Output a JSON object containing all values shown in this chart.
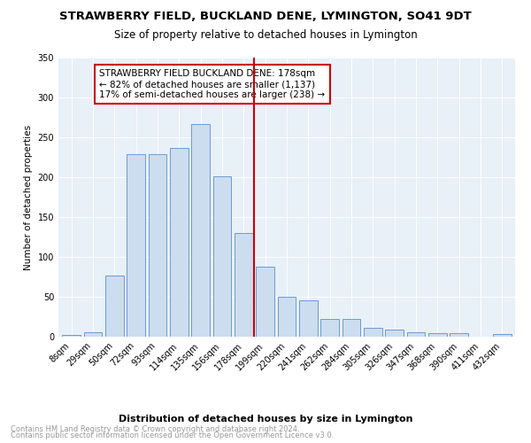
{
  "title": "STRAWBERRY FIELD, BUCKLAND DENE, LYMINGTON, SO41 9DT",
  "subtitle": "Size of property relative to detached houses in Lymington",
  "xlabel": "Distribution of detached houses by size in Lymington",
  "ylabel": "Number of detached properties",
  "bar_labels": [
    "8sqm",
    "29sqm",
    "50sqm",
    "72sqm",
    "93sqm",
    "114sqm",
    "135sqm",
    "156sqm",
    "178sqm",
    "199sqm",
    "220sqm",
    "241sqm",
    "262sqm",
    "284sqm",
    "305sqm",
    "326sqm",
    "347sqm",
    "368sqm",
    "390sqm",
    "411sqm",
    "432sqm"
  ],
  "bar_values": [
    2,
    6,
    77,
    229,
    229,
    237,
    267,
    201,
    130,
    88,
    50,
    46,
    22,
    22,
    11,
    9,
    6,
    5,
    5,
    0,
    3
  ],
  "bar_color": "#ccddf0",
  "bar_edge_color": "#5b8fcc",
  "vline_x": 8.5,
  "vline_color": "#cc0000",
  "annotation_text": "STRAWBERRY FIELD BUCKLAND DENE: 178sqm\n← 82% of detached houses are smaller (1,137)\n17% of semi-detached houses are larger (238) →",
  "annotation_box_color": "#ffffff",
  "annotation_box_edge": "#cc0000",
  "ylim": [
    0,
    350
  ],
  "yticks": [
    0,
    50,
    100,
    150,
    200,
    250,
    300,
    350
  ],
  "background_color": "#e8f0f8",
  "footer_line1": "Contains HM Land Registry data © Crown copyright and database right 2024.",
  "footer_line2": "Contains public sector information licensed under the Open Government Licence v3.0.",
  "title_fontsize": 9.5,
  "subtitle_fontsize": 8.5,
  "xlabel_fontsize": 8,
  "ylabel_fontsize": 7.5,
  "tick_fontsize": 7,
  "annotation_fontsize": 7.5,
  "footer_fontsize": 6
}
